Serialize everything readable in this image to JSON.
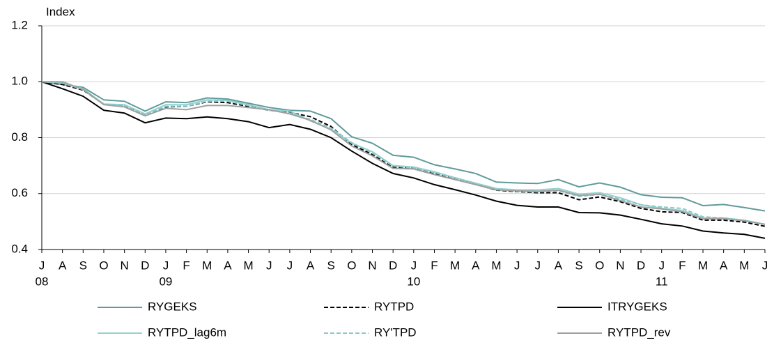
{
  "chart_data": {
    "type": "line",
    "y_label": "Index",
    "categories": [
      "J",
      "A",
      "S",
      "O",
      "N",
      "D",
      "J",
      "F",
      "M",
      "A",
      "M",
      "J",
      "J",
      "A",
      "S",
      "O",
      "N",
      "D",
      "J",
      "F",
      "M",
      "A",
      "M",
      "J",
      "J",
      "A",
      "S",
      "O",
      "N",
      "D",
      "J",
      "F",
      "M",
      "A",
      "M",
      "J"
    ],
    "group_labels": [
      "08",
      null,
      null,
      null,
      null,
      null,
      "09",
      null,
      null,
      null,
      null,
      null,
      null,
      null,
      null,
      null,
      null,
      null,
      "10",
      null,
      null,
      null,
      null,
      null,
      null,
      null,
      null,
      null,
      null,
      null,
      "11",
      null,
      null,
      null,
      null,
      null
    ],
    "ylim": [
      0.4,
      1.2
    ],
    "yticks": [
      0.4,
      0.6,
      0.8,
      {
        "value": 1,
        "label": "1.0"
      },
      1.2
    ],
    "grid": true,
    "series": [
      {
        "name": "RYGEKS",
        "color": "#5f9b9a",
        "dashed": false,
        "values": [
          1.0,
          0.99,
          0.98,
          0.935,
          0.93,
          0.895,
          0.928,
          0.925,
          0.942,
          0.938,
          0.923,
          0.908,
          0.898,
          0.895,
          0.868,
          0.803,
          0.78,
          0.737,
          0.73,
          0.703,
          0.688,
          0.672,
          0.641,
          0.638,
          0.636,
          0.65,
          0.624,
          0.638,
          0.623,
          0.596,
          0.587,
          0.585,
          0.557,
          0.561,
          0.55,
          0.538
        ]
      },
      {
        "name": "RYTPD",
        "color": "#000000",
        "dashed": true,
        "values": [
          1.0,
          0.99,
          0.97,
          0.92,
          0.915,
          0.88,
          0.91,
          0.912,
          0.928,
          0.925,
          0.912,
          0.898,
          0.89,
          0.875,
          0.84,
          0.775,
          0.74,
          0.695,
          0.69,
          0.672,
          0.652,
          0.633,
          0.612,
          0.607,
          0.603,
          0.603,
          0.578,
          0.588,
          0.571,
          0.547,
          0.535,
          0.532,
          0.505,
          0.505,
          0.498,
          0.483
        ]
      },
      {
        "name": "ITRYGEKS",
        "color": "#000000",
        "dashed": false,
        "values": [
          1.0,
          0.975,
          0.948,
          0.898,
          0.888,
          0.853,
          0.87,
          0.868,
          0.874,
          0.868,
          0.857,
          0.836,
          0.847,
          0.83,
          0.8,
          0.752,
          0.708,
          0.672,
          0.656,
          0.632,
          0.614,
          0.595,
          0.573,
          0.558,
          0.552,
          0.552,
          0.532,
          0.531,
          0.523,
          0.508,
          0.492,
          0.484,
          0.466,
          0.459,
          0.454,
          0.44
        ]
      },
      {
        "name": "RYTPD_lag6m",
        "color": "#92d2d2",
        "dashed": false,
        "values": [
          1.0,
          0.995,
          0.975,
          0.92,
          0.918,
          0.885,
          0.918,
          0.918,
          0.935,
          0.933,
          0.918,
          0.9,
          0.895,
          0.86,
          0.83,
          0.78,
          0.75,
          0.7,
          0.695,
          0.678,
          0.657,
          0.637,
          0.618,
          0.613,
          0.613,
          0.618,
          0.598,
          0.603,
          0.585,
          0.56,
          0.547,
          0.54,
          0.513,
          0.513,
          0.505,
          0.49
        ]
      },
      {
        "name": "RY'TPD",
        "color": "#8cc8c8",
        "dashed": true,
        "values": [
          1.0,
          0.995,
          0.972,
          0.92,
          0.915,
          0.882,
          0.912,
          0.912,
          0.93,
          0.93,
          0.915,
          0.898,
          0.888,
          0.865,
          0.835,
          0.782,
          0.745,
          0.698,
          0.692,
          0.675,
          0.655,
          0.635,
          0.615,
          0.608,
          0.606,
          0.61,
          0.59,
          0.597,
          0.58,
          0.56,
          0.552,
          0.547,
          0.517,
          0.513,
          0.503,
          0.49
        ]
      },
      {
        "name": "RYTPD_rev",
        "color": "#a0a0a0",
        "dashed": false,
        "values": [
          1.0,
          1.0,
          0.972,
          0.918,
          0.91,
          0.878,
          0.905,
          0.9,
          0.915,
          0.915,
          0.908,
          0.9,
          0.885,
          0.862,
          0.828,
          0.77,
          0.735,
          0.69,
          0.688,
          0.668,
          0.65,
          0.632,
          0.613,
          0.61,
          0.608,
          0.612,
          0.593,
          0.598,
          0.575,
          0.552,
          0.545,
          0.535,
          0.51,
          0.51,
          0.503,
          0.49
        ]
      }
    ]
  }
}
